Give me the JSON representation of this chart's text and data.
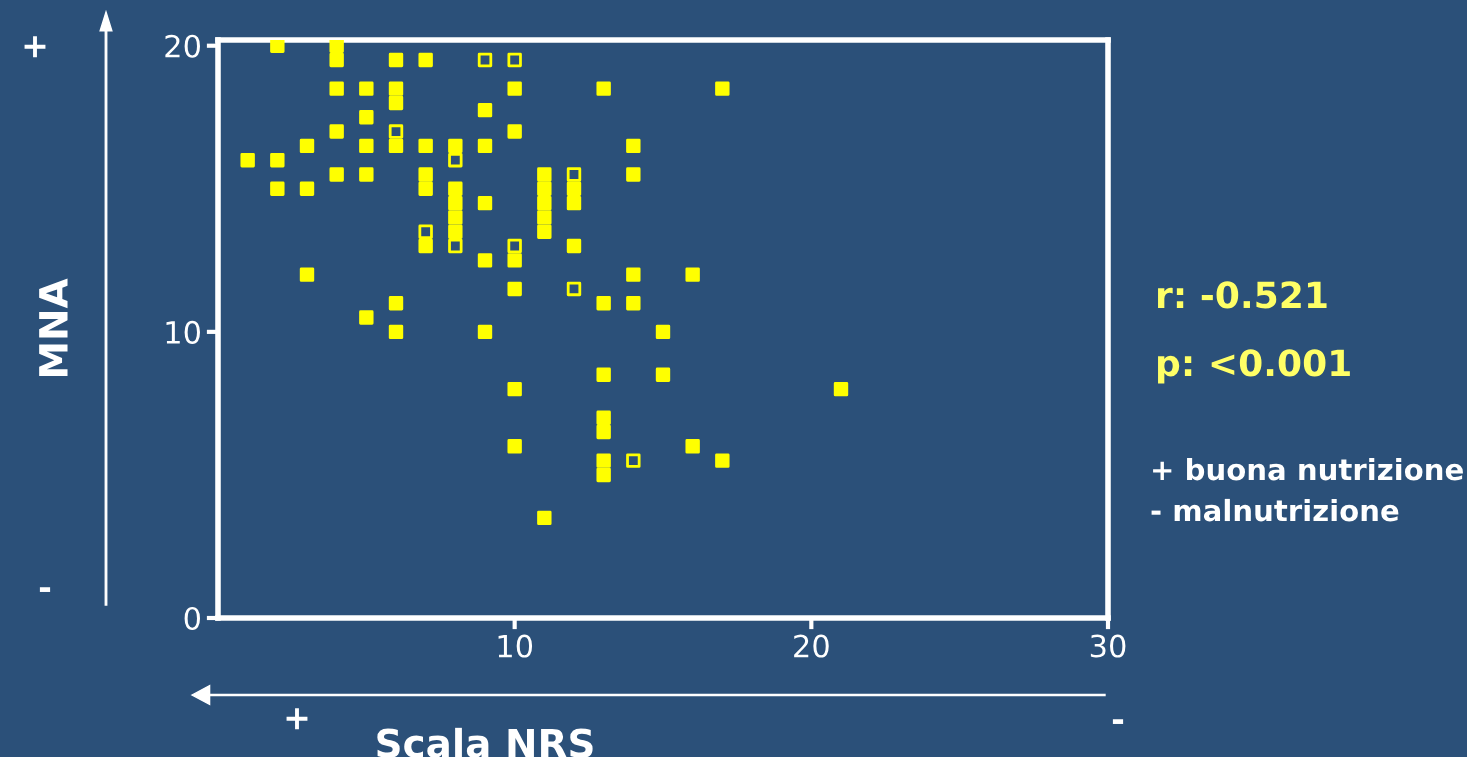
{
  "chart_data": {
    "type": "scatter",
    "xlabel": "Scala NRS",
    "ylabel": "MNA",
    "xlim": [
      0,
      30
    ],
    "xticks": [
      10,
      20,
      30
    ],
    "ylim": [
      0,
      20.2
    ],
    "yticks": [
      0,
      10,
      20
    ],
    "marker": "square",
    "grid": false,
    "legend": false,
    "annotations": [
      "r: -0.521",
      "p: <0.001",
      "+ buona nutrizione",
      "- malnutrizione",
      "+",
      "-",
      "+",
      "-"
    ],
    "series": [
      {
        "color": "#ffff00",
        "x": [
          2,
          4,
          4,
          6,
          7,
          4,
          5,
          6,
          10,
          13,
          17,
          6,
          5,
          9,
          4,
          10,
          3,
          5,
          6,
          7,
          8,
          9,
          14,
          1,
          2,
          4,
          5,
          7,
          11,
          14,
          2,
          3,
          7,
          8,
          11,
          12,
          8,
          9,
          11,
          12,
          8,
          11,
          8,
          11,
          7,
          12,
          9,
          10,
          3,
          14,
          16,
          10,
          6,
          13,
          14,
          5,
          6,
          9,
          15,
          13,
          15,
          10,
          21,
          13,
          13,
          10,
          16,
          13,
          17,
          13,
          11
        ],
        "values": [
          20,
          20,
          19.5,
          19.5,
          19.5,
          18.5,
          18.5,
          18.5,
          18.5,
          18.5,
          18.5,
          18,
          17.5,
          17.75,
          17,
          17,
          16.5,
          16.5,
          16.5,
          16.5,
          16.5,
          16.5,
          16.5,
          16,
          16,
          15.5,
          15.5,
          15.5,
          15.5,
          15.5,
          15,
          15,
          15,
          15,
          15,
          15,
          14.5,
          14.5,
          14.5,
          14.5,
          14,
          14,
          13.5,
          13.5,
          13,
          13,
          12.5,
          12.5,
          12,
          12,
          12,
          11.5,
          11,
          11,
          11,
          10.5,
          10,
          10,
          10,
          8.5,
          8.5,
          8,
          8,
          7,
          6.5,
          6,
          6,
          5.5,
          5.5,
          5,
          3.5
        ]
      },
      {
        "color": "#ffff00",
        "x": [
          9,
          10,
          6,
          8,
          12,
          7,
          8,
          10,
          12,
          14
        ],
        "values": [
          19.5,
          19.5,
          17,
          16,
          15.5,
          13.5,
          13,
          13,
          11.5,
          5.5
        ]
      }
    ]
  }
}
